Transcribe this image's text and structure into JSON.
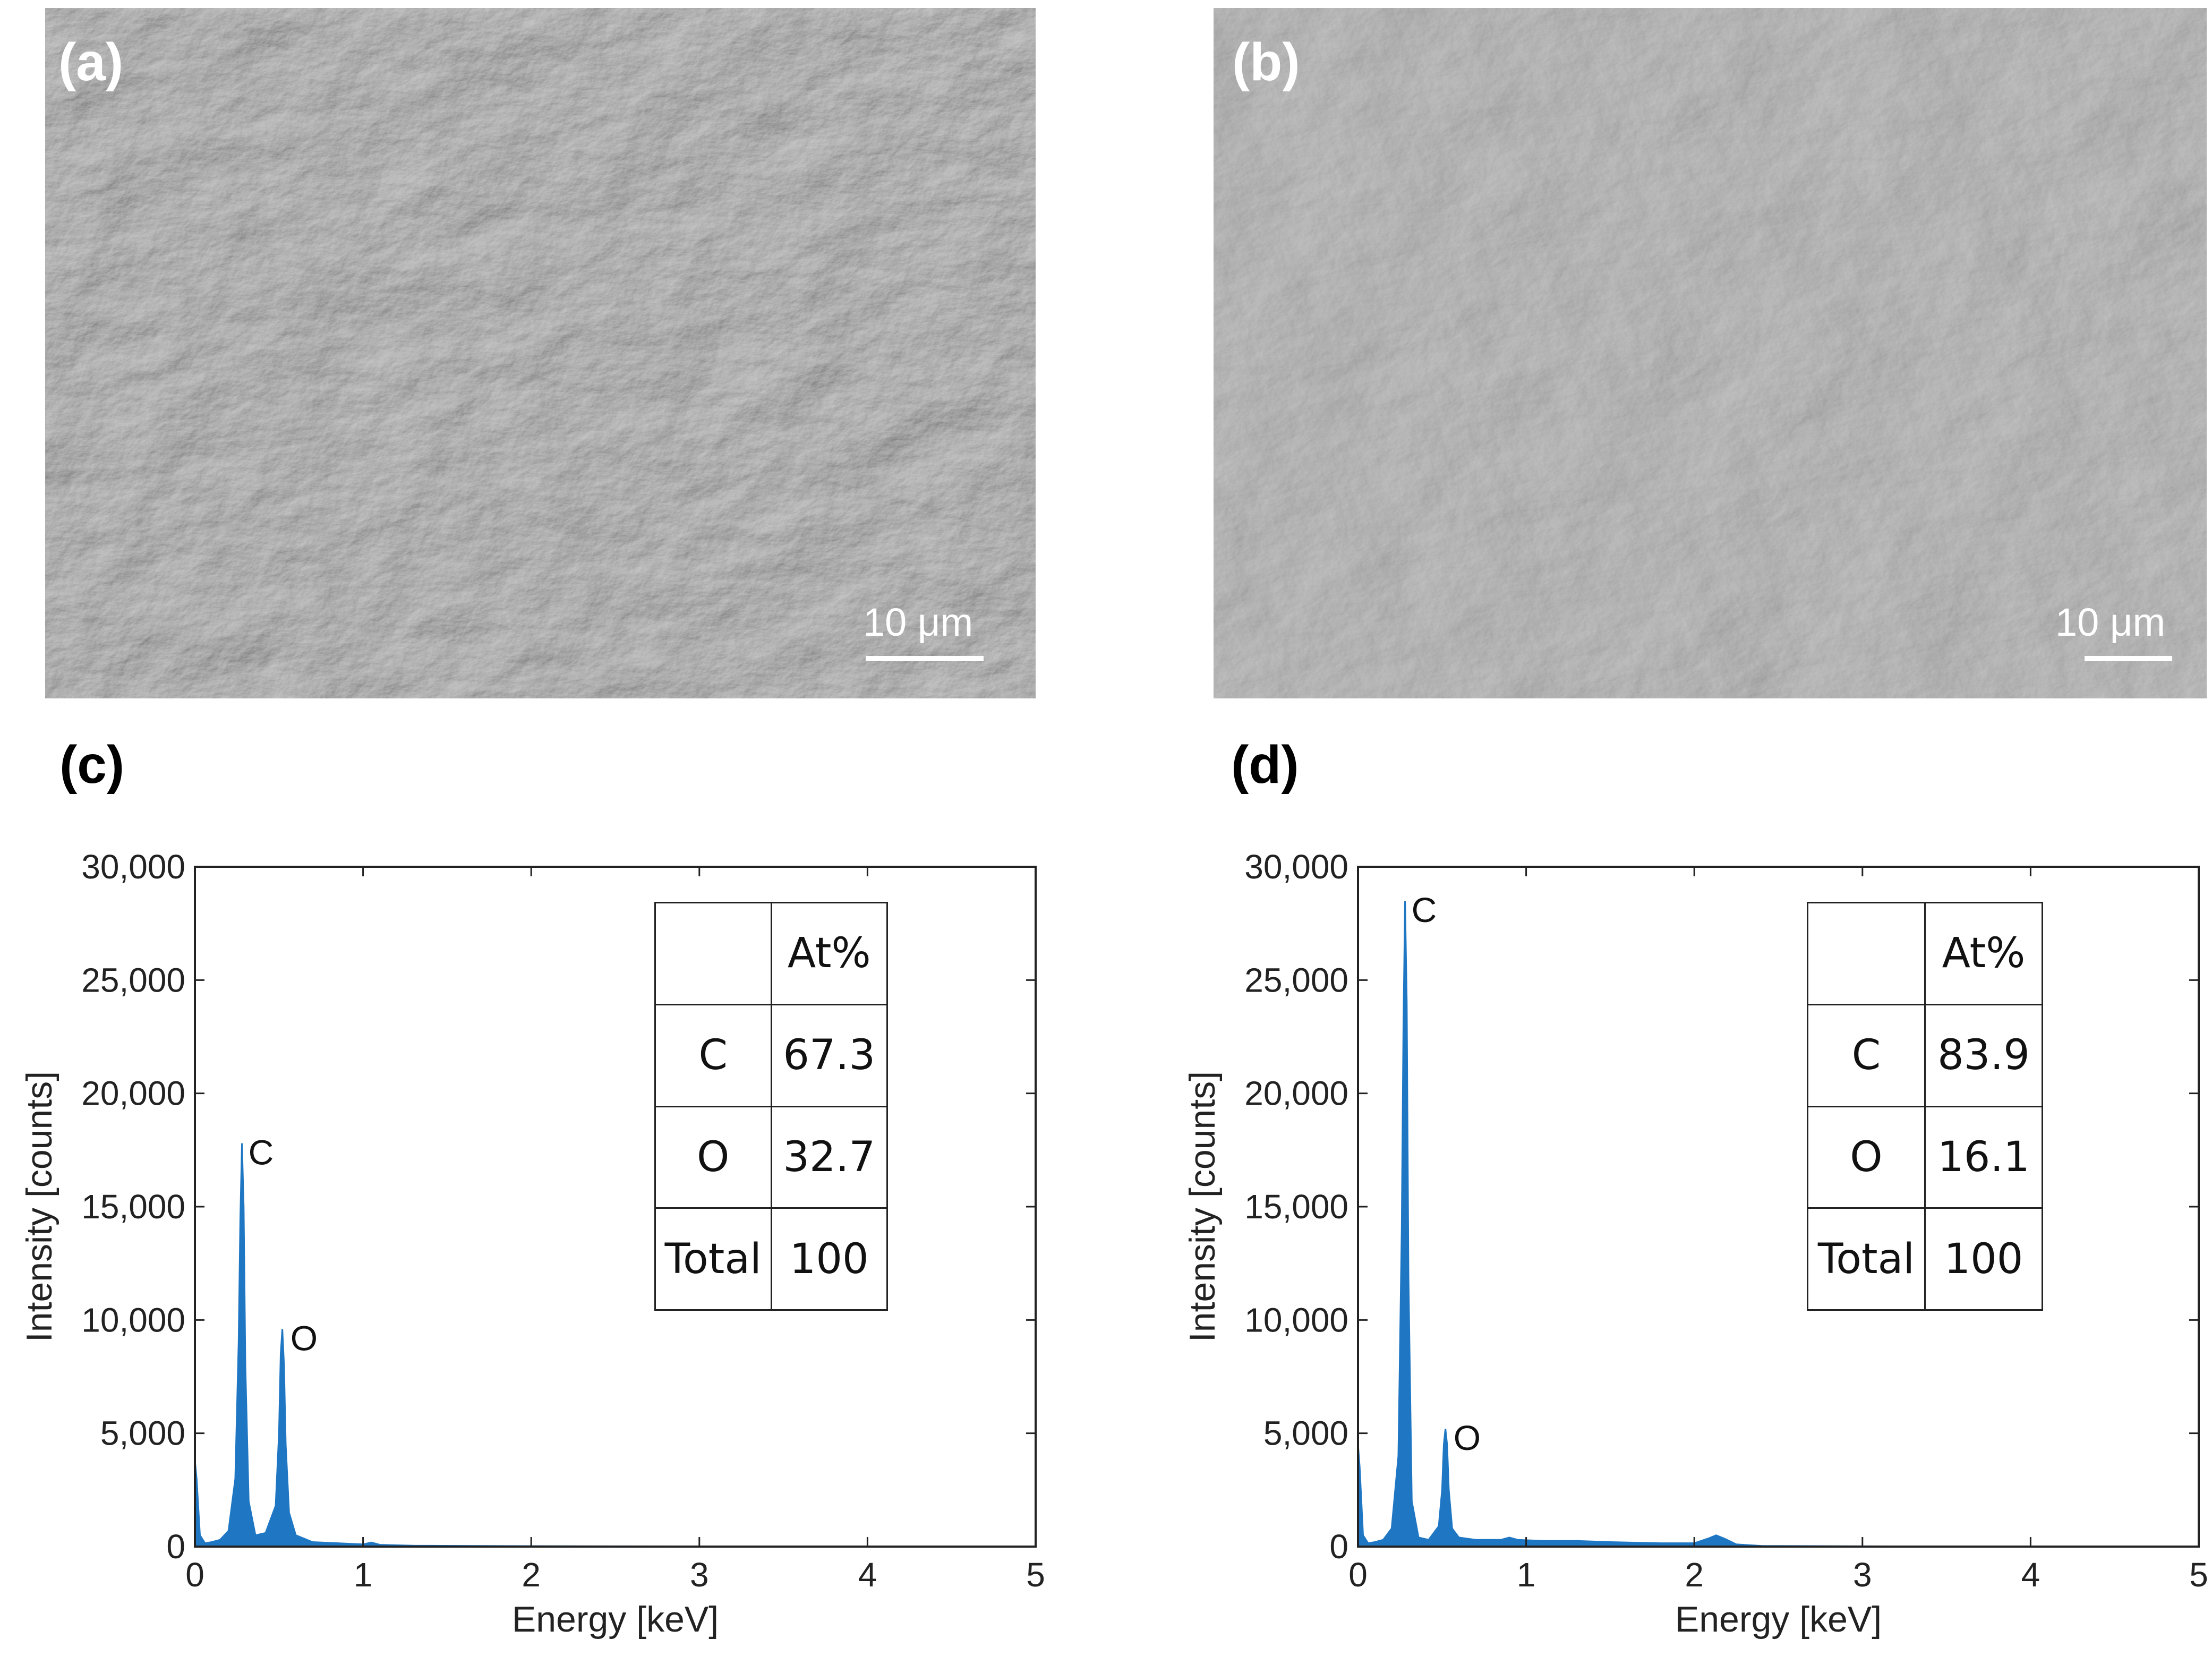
{
  "panels": {
    "a": {
      "label": "(a)",
      "scalebar": "10 μm"
    },
    "b": {
      "label": "(b)",
      "scalebar": "10 μm"
    },
    "c": {
      "label": "(c)"
    },
    "d": {
      "label": "(d)"
    }
  },
  "tables": {
    "c": {
      "header": [
        "",
        "At%"
      ],
      "rows": [
        [
          "C",
          "67.3"
        ],
        [
          "O",
          "32.7"
        ],
        [
          "Total",
          "100"
        ]
      ]
    },
    "d": {
      "header": [
        "",
        "At%"
      ],
      "rows": [
        [
          "C",
          "83.9"
        ],
        [
          "O",
          "16.1"
        ],
        [
          "Total",
          "100"
        ]
      ]
    }
  },
  "chart_data": [
    {
      "type": "area",
      "panel": "(c)",
      "xlabel": "Energy [keV]",
      "ylabel": "Intensity [counts]",
      "xlim": [
        0,
        5
      ],
      "ylim": [
        0,
        30000
      ],
      "xticks": [
        0,
        1,
        2,
        3,
        4,
        5
      ],
      "yticks": [
        0,
        5000,
        10000,
        15000,
        20000,
        25000,
        30000
      ],
      "ytick_labels": [
        "0",
        "5,000",
        "10,000",
        "15,000",
        "20,000",
        "25,000",
        "30,000"
      ],
      "color": "#1f77c4",
      "series": [
        {
          "x": [
            0,
            0.01,
            0.03,
            0.06,
            0.1,
            0.15,
            0.2,
            0.24,
            0.26,
            0.27,
            0.28,
            0.29,
            0.3,
            0.32,
            0.36,
            0.42,
            0.48,
            0.5,
            0.51,
            0.52,
            0.53,
            0.54,
            0.56,
            0.6,
            0.7,
            0.85,
            1.0,
            1.05,
            1.1,
            1.3,
            2.0,
            3.0,
            4.0,
            5.0
          ],
          "y": [
            3800,
            3000,
            500,
            150,
            200,
            300,
            700,
            3000,
            9000,
            14500,
            17800,
            15000,
            8000,
            2000,
            500,
            600,
            1800,
            5000,
            8500,
            9600,
            8000,
            4500,
            1500,
            500,
            200,
            150,
            100,
            180,
            80,
            40,
            20,
            10,
            5,
            0
          ]
        }
      ],
      "annotations": [
        {
          "text": "C",
          "x": 0.28,
          "y": 17800
        },
        {
          "text": "O",
          "x": 0.53,
          "y": 9600
        }
      ]
    },
    {
      "type": "area",
      "panel": "(d)",
      "xlabel": "Energy [keV]",
      "ylabel": "Intensity [counts]",
      "xlim": [
        0,
        5
      ],
      "ylim": [
        0,
        30000
      ],
      "xticks": [
        0,
        1,
        2,
        3,
        4,
        5
      ],
      "yticks": [
        0,
        5000,
        10000,
        15000,
        20000,
        25000,
        30000
      ],
      "ytick_labels": [
        "0",
        "5,000",
        "10,000",
        "15,000",
        "20,000",
        "25,000",
        "30,000"
      ],
      "color": "#1f77c4",
      "series": [
        {
          "x": [
            0,
            0.01,
            0.03,
            0.06,
            0.1,
            0.15,
            0.2,
            0.24,
            0.26,
            0.27,
            0.28,
            0.29,
            0.3,
            0.32,
            0.36,
            0.42,
            0.48,
            0.5,
            0.51,
            0.52,
            0.53,
            0.54,
            0.56,
            0.6,
            0.7,
            0.85,
            0.9,
            0.95,
            1.1,
            1.3,
            1.5,
            1.8,
            2.0,
            2.08,
            2.13,
            2.18,
            2.25,
            2.4,
            3.0,
            4.0,
            5.0
          ],
          "y": [
            4500,
            3500,
            500,
            150,
            200,
            300,
            800,
            4000,
            14000,
            23000,
            28500,
            24000,
            12000,
            2000,
            400,
            300,
            900,
            2500,
            4500,
            5200,
            4500,
            2500,
            800,
            400,
            300,
            300,
            400,
            300,
            250,
            250,
            200,
            150,
            150,
            350,
            500,
            350,
            100,
            30,
            15,
            8,
            0
          ]
        }
      ],
      "annotations": [
        {
          "text": "C",
          "x": 0.28,
          "y": 28500
        },
        {
          "text": "O",
          "x": 0.53,
          "y": 5200
        }
      ]
    }
  ]
}
